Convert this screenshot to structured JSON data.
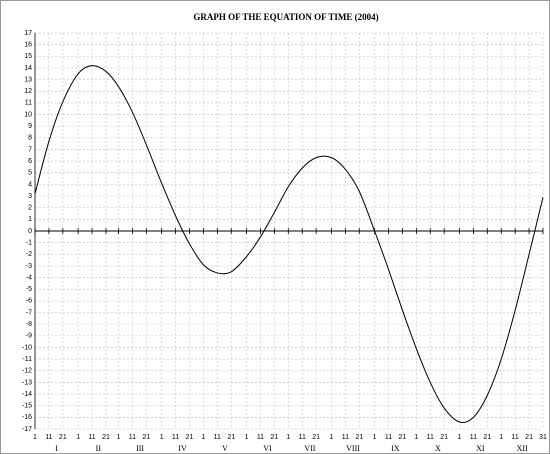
{
  "chart_data": {
    "type": "line",
    "title": "GRAPH OF THE EQUATION OF TIME (2004)",
    "x": [
      1,
      11,
      21,
      32,
      42,
      52,
      61,
      71,
      81,
      92,
      102,
      112,
      122,
      132,
      142,
      153,
      163,
      173,
      183,
      193,
      203,
      214,
      224,
      234,
      245,
      255,
      265,
      275,
      285,
      295,
      306,
      316,
      326,
      336,
      346,
      356,
      366
    ],
    "series": [
      {
        "color": "#000000",
        "values": [
          3.2,
          7.7,
          11.1,
          13.5,
          14.2,
          13.7,
          12.4,
          10.2,
          7.4,
          4.1,
          1.3,
          -1.1,
          -2.9,
          -3.6,
          -3.5,
          -2.2,
          -0.5,
          1.6,
          3.8,
          5.4,
          6.3,
          6.3,
          5.3,
          3.4,
          0.0,
          -3.3,
          -6.8,
          -10.1,
          -13.0,
          -15.2,
          -16.4,
          -16.0,
          -14.1,
          -11.0,
          -6.8,
          -2.0,
          2.9
        ]
      }
    ],
    "xlim": [
      1,
      366
    ],
    "xticks": [
      {
        "value": 1,
        "label": "1"
      },
      {
        "value": 11,
        "label": "11"
      },
      {
        "value": 21,
        "label": "21"
      },
      {
        "value": 32,
        "label": "1"
      },
      {
        "value": 42,
        "label": "11"
      },
      {
        "value": 52,
        "label": "21"
      },
      {
        "value": 61,
        "label": "1"
      },
      {
        "value": 71,
        "label": "11"
      },
      {
        "value": 81,
        "label": "21"
      },
      {
        "value": 92,
        "label": "1"
      },
      {
        "value": 102,
        "label": "11"
      },
      {
        "value": 112,
        "label": "21"
      },
      {
        "value": 122,
        "label": "1"
      },
      {
        "value": 132,
        "label": "11"
      },
      {
        "value": 142,
        "label": "21"
      },
      {
        "value": 153,
        "label": "1"
      },
      {
        "value": 163,
        "label": "11"
      },
      {
        "value": 173,
        "label": "21"
      },
      {
        "value": 183,
        "label": "1"
      },
      {
        "value": 193,
        "label": "11"
      },
      {
        "value": 203,
        "label": "21"
      },
      {
        "value": 214,
        "label": "1"
      },
      {
        "value": 224,
        "label": "11"
      },
      {
        "value": 234,
        "label": "21"
      },
      {
        "value": 245,
        "label": "1"
      },
      {
        "value": 255,
        "label": "11"
      },
      {
        "value": 265,
        "label": "21"
      },
      {
        "value": 275,
        "label": "1"
      },
      {
        "value": 285,
        "label": "11"
      },
      {
        "value": 295,
        "label": "21"
      },
      {
        "value": 306,
        "label": "1"
      },
      {
        "value": 316,
        "label": "11"
      },
      {
        "value": 326,
        "label": "21"
      },
      {
        "value": 336,
        "label": "1"
      },
      {
        "value": 346,
        "label": "11"
      },
      {
        "value": 356,
        "label": "21"
      },
      {
        "value": 366,
        "label": "31"
      }
    ],
    "months": [
      "I",
      "II",
      "III",
      "IV",
      "V",
      "VI",
      "VII",
      "VIII",
      "IX",
      "X",
      "XI",
      "XII"
    ],
    "ylim": [
      -17,
      17
    ],
    "yticks": [
      -17,
      -16,
      -15,
      -14,
      -13,
      -12,
      -11,
      -10,
      -9,
      -8,
      -7,
      -6,
      -5,
      -4,
      -3,
      -2,
      -1,
      0,
      1,
      2,
      3,
      4,
      5,
      6,
      7,
      8,
      9,
      10,
      11,
      12,
      13,
      14,
      15,
      16,
      17
    ],
    "grid": true
  }
}
